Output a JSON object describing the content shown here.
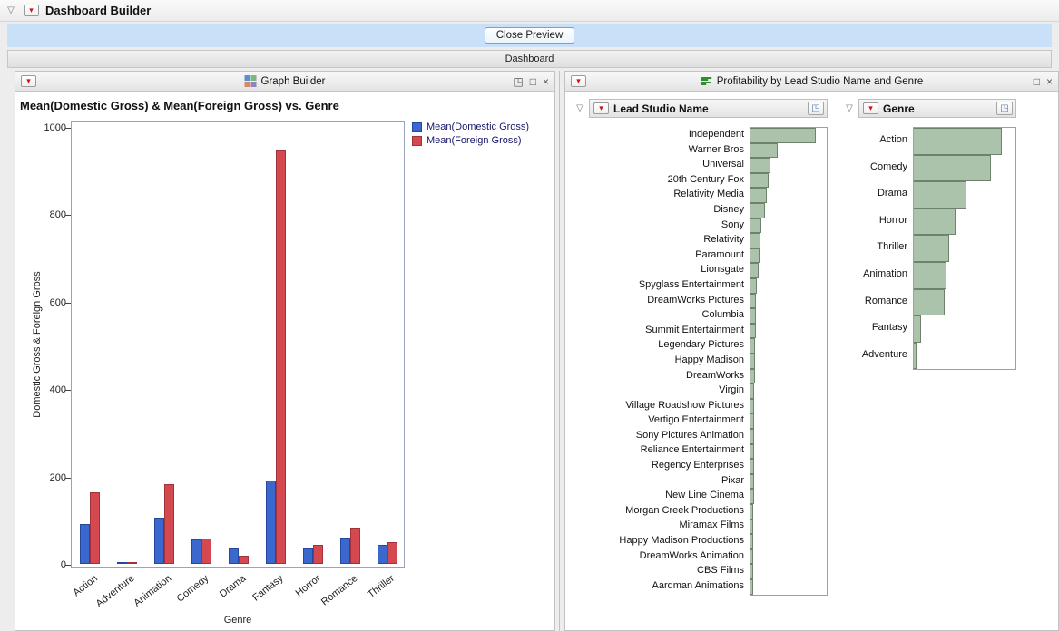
{
  "app": {
    "title": "Dashboard Builder",
    "close_preview": "Close Preview",
    "dashboard": "Dashboard"
  },
  "graph_panel": {
    "title": "Graph Builder"
  },
  "profit_panel": {
    "title": "Profitability by Lead Studio Name and Genre"
  },
  "icons": {
    "disclosure": "▽",
    "red_triangle": "▾",
    "popout": "◳",
    "maximize": "□",
    "close": "×",
    "open_window": "◳"
  },
  "chart_data": [
    {
      "type": "bar",
      "title": "Mean(Domestic Gross) & Mean(Foreign Gross) vs. Genre",
      "xlabel": "Genre",
      "ylabel": "Domestic Gross & Foreign Gross",
      "ylim": [
        0,
        1000
      ],
      "yticks": [
        0,
        200,
        400,
        600,
        800,
        1000
      ],
      "grid": false,
      "legend_position": "top-right-outside",
      "categories": [
        "Action",
        "Adventure",
        "Animation",
        "Comedy",
        "Drama",
        "Fantasy",
        "Horror",
        "Romance",
        "Thriller"
      ],
      "series": [
        {
          "name": "Mean(Domestic Gross)",
          "color": "#3b68cf",
          "border": "#26479e",
          "values": [
            92,
            2,
            105,
            57,
            36,
            191,
            35,
            60,
            43
          ]
        },
        {
          "name": "Mean(Foreign Gross)",
          "color": "#d4494f",
          "border": "#a2323a",
          "values": [
            163,
            2,
            182,
            59,
            18,
            947,
            43,
            83,
            50
          ]
        }
      ]
    },
    {
      "type": "bar",
      "orientation": "horizontal",
      "title": "Lead Studio Name",
      "bar_color": "#abc2ab",
      "bar_border": "#6e826e",
      "xlim": [
        0,
        100
      ],
      "categories": [
        "Independent",
        "Warner Bros",
        "Universal",
        "20th Century Fox",
        "Relativity Media",
        "Disney",
        "Sony",
        "Relativity",
        "Paramount",
        "Lionsgate",
        "Spyglass Entertainment",
        "DreamWorks Pictures",
        "Columbia",
        "Summit Entertainment",
        "Legendary Pictures",
        "Happy Madison",
        "DreamWorks",
        "Virgin",
        "Village Roadshow Pictures",
        "Vertigo Entertainment",
        "Sony Pictures Animation",
        "Reliance Entertainment",
        "Regency Enterprises",
        "Pixar",
        "New Line Cinema",
        "Morgan Creek Productions",
        "Miramax Films",
        "Happy Madison Productions",
        "DreamWorks Animation",
        "CBS Films",
        "Aardman Animations"
      ],
      "values": [
        88,
        36,
        27,
        24,
        22,
        20,
        15,
        13,
        12,
        11,
        8,
        7,
        7,
        7,
        6,
        6,
        6,
        5,
        5,
        5,
        5,
        5,
        5,
        5,
        5,
        4,
        4,
        4,
        4,
        4,
        4
      ]
    },
    {
      "type": "bar",
      "orientation": "horizontal",
      "title": "Genre",
      "bar_color": "#abc2ab",
      "bar_border": "#6e826e",
      "xlim": [
        0,
        100
      ],
      "categories": [
        "Action",
        "Comedy",
        "Drama",
        "Horror",
        "Thriller",
        "Animation",
        "Romance",
        "Fantasy",
        "Adventure"
      ],
      "values": [
        88,
        77,
        53,
        42,
        35,
        33,
        31,
        7,
        3
      ]
    }
  ]
}
